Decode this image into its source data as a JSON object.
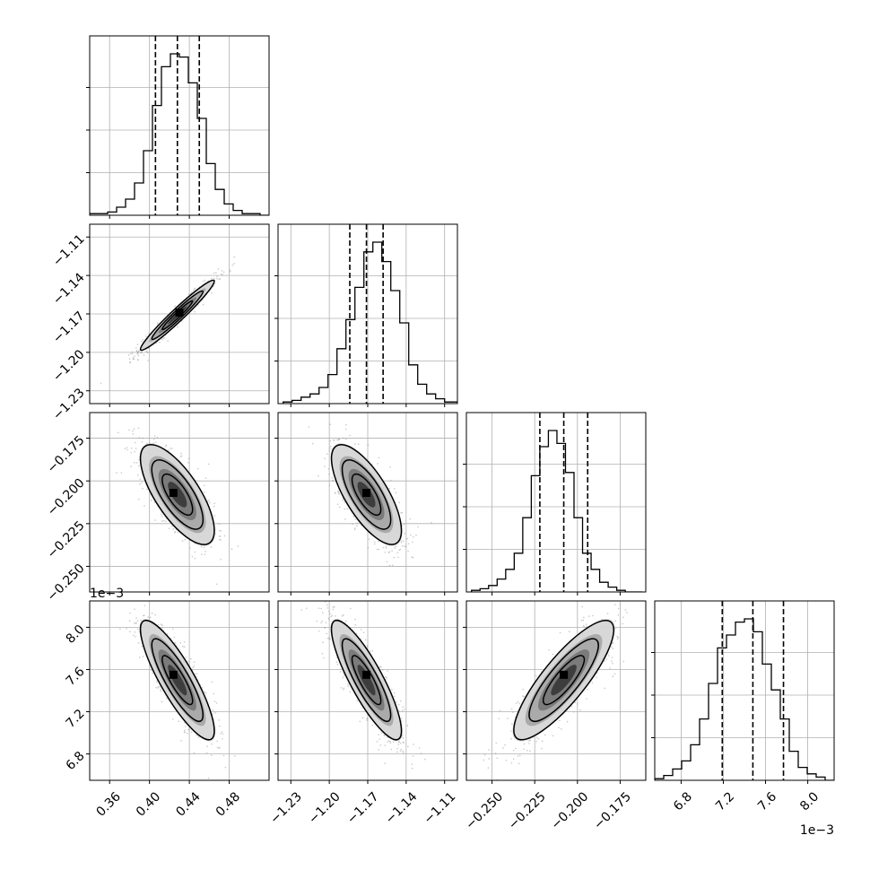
{
  "chart_data": {
    "type": "corner",
    "title": "",
    "grid": true,
    "params": [
      {
        "range": [
          0.34,
          0.52
        ],
        "ticks": [
          0.36,
          0.4,
          0.44,
          0.48
        ],
        "tick_labels": [
          "0.36",
          "0.40",
          "0.44",
          "0.48"
        ],
        "quantiles": [
          0.406,
          0.428,
          0.45
        ],
        "offset_label": "",
        "hist": {
          "edges_start": 0.34,
          "bin_width": 0.009,
          "counts": [
            1,
            1,
            2,
            5,
            10,
            20,
            40,
            68,
            92,
            100,
            98,
            82,
            60,
            32,
            16,
            7,
            3,
            1,
            1,
            0
          ]
        }
      },
      {
        "range": [
          -1.24,
          -1.1
        ],
        "ticks": [
          -1.23,
          -1.2,
          -1.17,
          -1.14,
          -1.11
        ],
        "tick_labels": [
          "−1.23",
          "−1.20",
          "−1.17",
          "−1.14",
          "−1.11"
        ],
        "quantiles": [
          -1.184,
          -1.171,
          -1.158
        ],
        "offset_label": "",
        "hist": {
          "edges_start": -1.236,
          "bin_width": 0.007,
          "counts": [
            1,
            2,
            4,
            6,
            10,
            18,
            34,
            52,
            72,
            94,
            100,
            88,
            70,
            50,
            24,
            12,
            6,
            3,
            1,
            1
          ]
        }
      },
      {
        "range": [
          -0.265,
          -0.16
        ],
        "ticks": [
          -0.25,
          -0.225,
          -0.2,
          -0.175
        ],
        "tick_labels": [
          "−0.250",
          "−0.225",
          "−0.200",
          "−0.175"
        ],
        "quantiles": [
          -0.222,
          -0.208,
          -0.194
        ],
        "offset_label": "",
        "hist": {
          "edges_start": -0.262,
          "bin_width": 0.005,
          "counts": [
            1,
            2,
            4,
            8,
            14,
            24,
            46,
            72,
            90,
            100,
            92,
            74,
            46,
            24,
            14,
            6,
            3,
            1,
            0,
            0
          ]
        }
      },
      {
        "range": [
          6.55,
          8.25
        ],
        "ticks": [
          6.8,
          7.2,
          7.6,
          8.0
        ],
        "tick_labels": [
          "6.8",
          "7.2",
          "7.6",
          "8.0"
        ],
        "quantiles": [
          7.19,
          7.48,
          7.77
        ],
        "offset_label": "1e−3",
        "hist": {
          "edges_start": 6.55,
          "bin_width": 0.085,
          "counts": [
            1,
            3,
            7,
            12,
            22,
            38,
            60,
            82,
            90,
            98,
            100,
            92,
            72,
            56,
            38,
            18,
            8,
            4,
            2,
            0
          ]
        }
      }
    ],
    "pairs": [
      {
        "x": 0,
        "y": 1,
        "mean": [
          0.428,
          -1.171
        ],
        "sd": [
          0.019,
          0.014
        ],
        "rho": 0.97,
        "mode": [
          0.43,
          -1.169
        ]
      },
      {
        "x": 0,
        "y": 2,
        "mean": [
          0.428,
          -0.208
        ],
        "sd": [
          0.019,
          0.015
        ],
        "rho": -0.72,
        "mode": [
          0.424,
          -0.207
        ]
      },
      {
        "x": 1,
        "y": 2,
        "mean": [
          -1.171,
          -0.208
        ],
        "sd": [
          0.014,
          0.015
        ],
        "rho": -0.72,
        "mode": [
          -1.171,
          -0.207
        ]
      },
      {
        "x": 0,
        "y": 3,
        "mean": [
          0.428,
          7.5
        ],
        "sd": [
          0.019,
          0.29
        ],
        "rho": -0.85,
        "mode": [
          0.424,
          7.55
        ]
      },
      {
        "x": 1,
        "y": 3,
        "mean": [
          -1.171,
          7.5
        ],
        "sd": [
          0.014,
          0.29
        ],
        "rho": -0.85,
        "mode": [
          -1.171,
          7.55
        ]
      },
      {
        "x": 2,
        "y": 3,
        "mean": [
          -0.208,
          7.5
        ],
        "sd": [
          0.015,
          0.29
        ],
        "rho": 0.84,
        "mode": [
          -0.208,
          7.55
        ]
      }
    ],
    "contour_levels_sigma": [
      0.5,
      1.0,
      1.5,
      2.0
    ]
  }
}
